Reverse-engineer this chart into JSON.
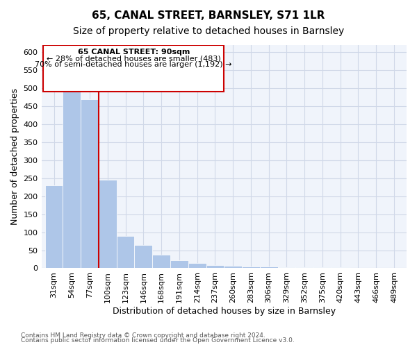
{
  "title": "65, CANAL STREET, BARNSLEY, S71 1LR",
  "subtitle": "Size of property relative to detached houses in Barnsley",
  "xlabel": "Distribution of detached houses by size in Barnsley",
  "ylabel": "Number of detached properties",
  "footnote1": "Contains HM Land Registry data © Crown copyright and database right 2024.",
  "footnote2": "Contains public sector information licensed under the Open Government Licence v3.0.",
  "property_size": 90,
  "property_label": "65 CANAL STREET: 90sqm",
  "annotation_line1": "← 28% of detached houses are smaller (483)",
  "annotation_line2": "70% of semi-detached houses are larger (1,192) →",
  "bins": [
    31,
    54,
    77,
    100,
    123,
    146,
    168,
    191,
    214,
    237,
    260,
    283,
    306,
    329,
    352,
    375,
    420,
    443,
    466,
    489
  ],
  "bin_labels": [
    "31sqm",
    "54sqm",
    "77sqm",
    "100sqm",
    "123sqm",
    "146sqm",
    "168sqm",
    "191sqm",
    "214sqm",
    "237sqm",
    "260sqm",
    "283sqm",
    "306sqm",
    "329sqm",
    "352sqm",
    "375sqm",
    "420sqm",
    "443sqm",
    "466sqm",
    "489sqm"
  ],
  "values": [
    230,
    490,
    470,
    245,
    90,
    65,
    38,
    22,
    14,
    9,
    7,
    5,
    4,
    3,
    3,
    2,
    2,
    1,
    1,
    1
  ],
  "bar_color": "#aec6e8",
  "bar_edge_color": "#ffffff",
  "highlight_bar_index": 2,
  "highlight_line_color": "#cc0000",
  "box_color": "#cc0000",
  "ylim": [
    0,
    620
  ],
  "yticks": [
    0,
    50,
    100,
    150,
    200,
    250,
    300,
    350,
    400,
    450,
    500,
    550,
    600
  ],
  "grid_color": "#d0d8e8",
  "bg_color": "#f0f4fb",
  "title_fontsize": 11,
  "subtitle_fontsize": 10,
  "axis_fontsize": 9,
  "tick_fontsize": 8
}
